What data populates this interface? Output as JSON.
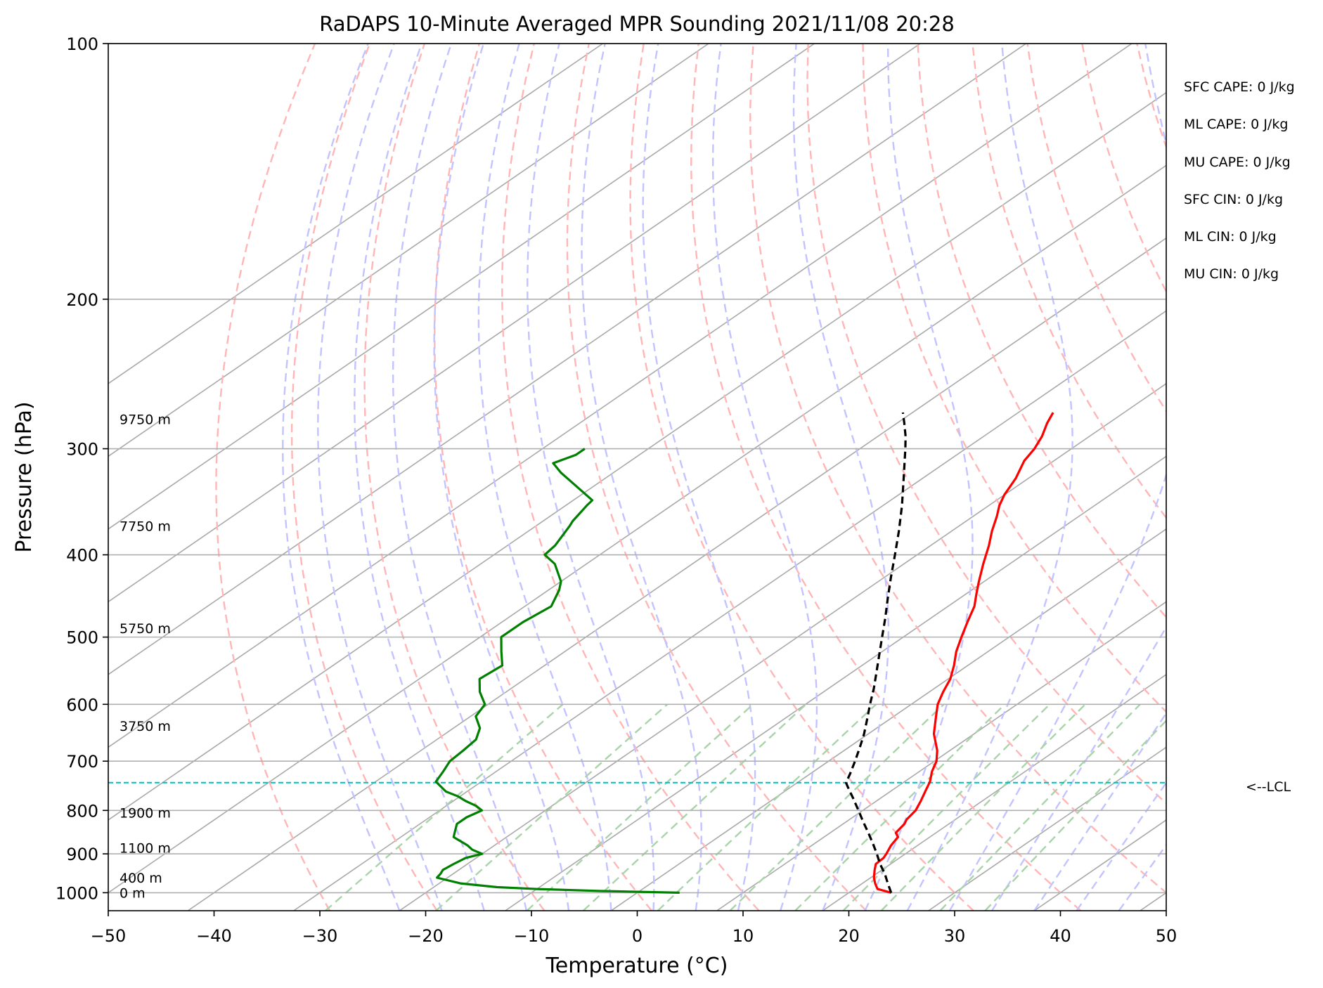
{
  "chart_data": {
    "type": "line",
    "title": "RaDAPS 10-Minute Averaged MPR Sounding 2021/11/08 20:28",
    "xlabel": "Temperature (°C)",
    "ylabel": "Pressure (hPa)",
    "xlim": [
      -50,
      50
    ],
    "ylim": [
      1050,
      100
    ],
    "y_scale": "log",
    "grid": true,
    "x_ticks": [
      -50,
      -40,
      -30,
      -20,
      -10,
      0,
      10,
      20,
      30,
      40,
      50
    ],
    "x_tick_labels": [
      "−50",
      "−40",
      "−30",
      "−20",
      "−10",
      "0",
      "10",
      "20",
      "30",
      "40",
      "50"
    ],
    "y_ticks": [
      100,
      200,
      300,
      400,
      500,
      600,
      700,
      800,
      900,
      1000
    ],
    "y_tick_labels": [
      "100",
      "200",
      "300",
      "400",
      "500",
      "600",
      "700",
      "800",
      "900",
      "1000"
    ],
    "series": [
      {
        "role": "temperature",
        "color": "#ff0000",
        "p": [
          1000,
          990,
          975,
          960,
          940,
          925,
          910,
          900,
          880,
          860,
          850,
          830,
          820,
          800,
          780,
          760,
          740,
          720,
          700,
          680,
          650,
          620,
          600,
          580,
          560,
          540,
          520,
          500,
          480,
          460,
          445,
          430,
          410,
          390,
          375,
          360,
          350,
          340,
          325,
          310,
          300,
          290,
          280,
          272
        ],
        "t": [
          24,
          22.2,
          21.2,
          20.3,
          19.3,
          18.6,
          18.5,
          18.2,
          17.5,
          17,
          16.2,
          15.8,
          15.4,
          15,
          14.2,
          13.3,
          12.4,
          11.2,
          10.2,
          8.8,
          6.2,
          4,
          2.5,
          1.3,
          0.2,
          -1.3,
          -3,
          -4.5,
          -6,
          -7.5,
          -9,
          -10.5,
          -12.5,
          -14.5,
          -16.2,
          -17.8,
          -19,
          -20,
          -21.2,
          -22.8,
          -23.5,
          -24.5,
          -25.8,
          -26.7
        ]
      },
      {
        "role": "dewpoint",
        "color": "#008000",
        "p": [
          1000,
          995,
          990,
          985,
          975,
          960,
          950,
          940,
          925,
          910,
          900,
          890,
          880,
          860,
          850,
          830,
          815,
          800,
          790,
          780,
          770,
          760,
          740,
          720,
          700,
          680,
          660,
          640,
          620,
          600,
          580,
          560,
          540,
          520,
          500,
          480,
          460,
          440,
          430,
          410,
          400,
          390,
          370,
          365,
          350,
          345,
          320,
          312,
          305,
          303,
          300
        ],
        "td": [
          4,
          -4,
          -10,
          -14,
          -18,
          -21,
          -21.2,
          -21.5,
          -21.3,
          -21,
          -20,
          -21.5,
          -22.5,
          -25,
          -25.5,
          -26.5,
          -26.5,
          -26,
          -27.2,
          -28.8,
          -30.2,
          -32,
          -34.3,
          -35,
          -35.8,
          -36,
          -36.3,
          -37.5,
          -39.5,
          -40.3,
          -42.5,
          -44.3,
          -44,
          -46,
          -48,
          -48,
          -47.5,
          -49,
          -50,
          -53,
          -55.2,
          -55.5,
          -56.8,
          -57.2,
          -58,
          -58.2,
          -65,
          -67,
          -66,
          -66,
          -66
        ]
      },
      {
        "role": "parcel",
        "color": "#000000",
        "p": [
          1000,
          975,
          950,
          925,
          900,
          875,
          850,
          825,
          800,
          775,
          750,
          742,
          725,
          700,
          675,
          650,
          625,
          600,
          575,
          550,
          525,
          500,
          475,
          450,
          425,
          400,
          375,
          350,
          325,
          310,
          300,
          290,
          280,
          272
        ],
        "t": [
          24,
          22.4,
          20.8,
          19,
          17.3,
          15.5,
          13.6,
          11.6,
          9.6,
          7.5,
          5.3,
          4.6,
          3.8,
          2.5,
          1.1,
          -0.4,
          -2.1,
          -3.9,
          -5.7,
          -7.7,
          -9.8,
          -12,
          -14.3,
          -16.8,
          -19.4,
          -22.1,
          -25,
          -28.2,
          -31.8,
          -34.1,
          -35.7,
          -37.4,
          -39.3,
          -40.9
        ]
      }
    ],
    "lcl": {
      "p": 742,
      "label": "<--LCL"
    },
    "height_labels": [
      {
        "p": 1000,
        "text": "0 m"
      },
      {
        "p": 960,
        "text": "400 m"
      },
      {
        "p": 885,
        "text": "1100 m"
      },
      {
        "p": 805,
        "text": "1900 m"
      },
      {
        "p": 636,
        "text": "3750 m"
      },
      {
        "p": 488,
        "text": "5750 m"
      },
      {
        "p": 370,
        "text": "7750 m"
      },
      {
        "p": 277,
        "text": "9750 m"
      }
    ],
    "annotations": [
      "SFC CAPE: 0 J/kg",
      "ML CAPE: 0 J/kg",
      "MU CAPE: 0 J/kg",
      "SFC CIN: 0 J/kg",
      "ML CIN: 0 J/kg",
      "MU CIN: 0 J/kg"
    ],
    "background_lines": {
      "isotherms_color": "#a9a9a9",
      "dry_adiabats_color": "#ffb6b6",
      "moist_adiabats_color": "#c3c3ff",
      "mixing_ratio_color": "#a9d4a9"
    }
  }
}
